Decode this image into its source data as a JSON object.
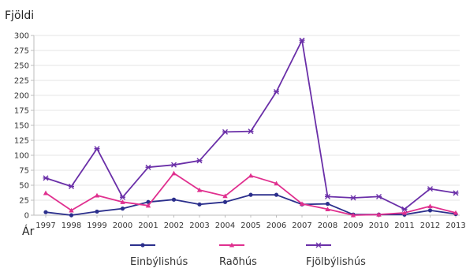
{
  "chart_data": {
    "type": "line",
    "ylabel": "Fjöldi",
    "xlabel": "Ár",
    "categories": [
      "1997",
      "1998",
      "1999",
      "2000",
      "2001",
      "2002",
      "2003",
      "2004",
      "2005",
      "2006",
      "2007",
      "2008",
      "2009",
      "2010",
      "2011",
      "2012",
      "2013"
    ],
    "ylim": [
      0,
      300
    ],
    "yticks": [
      0,
      25,
      50,
      75,
      100,
      125,
      150,
      175,
      200,
      225,
      250,
      275,
      300
    ],
    "grid": true,
    "legend": "bottom",
    "series": [
      {
        "name": "Einbýlishús",
        "color": "#2b2f8c",
        "marker": "circle",
        "values": [
          5,
          0,
          6,
          11,
          22,
          26,
          18,
          22,
          34,
          34,
          18,
          19,
          1,
          1,
          1,
          8,
          2
        ]
      },
      {
        "name": "Raðhús",
        "color": "#e0308f",
        "marker": "triangle",
        "values": [
          37,
          8,
          33,
          22,
          16,
          70,
          42,
          32,
          66,
          53,
          19,
          10,
          0,
          1,
          4,
          15,
          4
        ]
      },
      {
        "name": "Fjölbýlishús",
        "color": "#6a2fa8",
        "marker": "star",
        "values": [
          62,
          48,
          111,
          30,
          80,
          84,
          91,
          139,
          140,
          206,
          292,
          31,
          29,
          31,
          10,
          44,
          37
        ]
      }
    ]
  }
}
